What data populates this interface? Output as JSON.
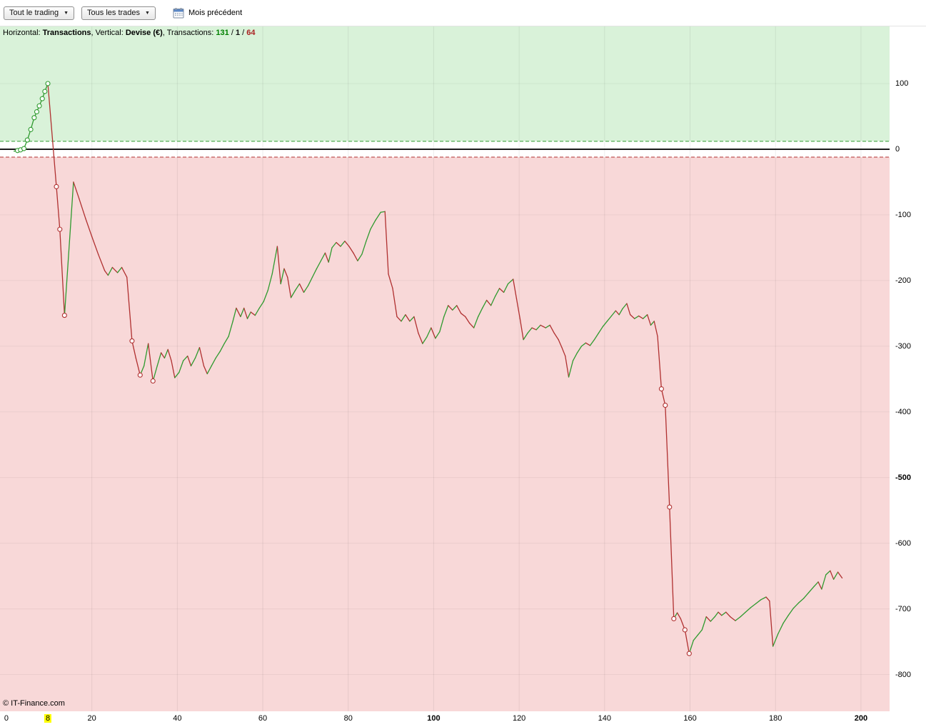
{
  "toolbar": {
    "trading_filter": "Tout le trading",
    "trades_filter": "Tous les trades",
    "prev_month_label": "Mois précédent"
  },
  "legend": {
    "horizontal_label": "Horizontal: ",
    "horizontal_value": "Transactions",
    "comma1": ", ",
    "vertical_label": "Vertical: ",
    "vertical_value": "Devise (€)",
    "comma2": ", ",
    "transactions_label": "Transactions: ",
    "wins": "131",
    "slash1": " / ",
    "neutral": "1",
    "slash2": " / ",
    "losses": "64"
  },
  "footer": "© IT-Finance.com",
  "chart_data": {
    "type": "line",
    "title": "Equity curve (cumulative P&L per transaction)",
    "xlabel": "Transactions",
    "ylabel": "Devise (€)",
    "xlim": [
      -1.5,
      206.7
    ],
    "ylim": [
      -856,
      187
    ],
    "grid": true,
    "zero_band": 12,
    "transactions_summary": {
      "wins": 131,
      "neutral": 1,
      "losses": 64
    },
    "colors": {
      "up": "#2e9a2e",
      "down": "#b03030",
      "bg_up": "#d9f2d9",
      "bg_down": "#f8d8d8",
      "zero_line": "#1a1a1a",
      "marker_fill": "#ffffff",
      "highlight": "#ffff00"
    },
    "y_ticks": [
      {
        "label": "100",
        "y": 100,
        "bold": false,
        "grid": true
      },
      {
        "label": "0",
        "y": 0,
        "bold": false,
        "grid": false
      },
      {
        "label": "-100",
        "y": -100,
        "bold": false,
        "grid": true
      },
      {
        "label": "-200",
        "y": -200,
        "bold": false,
        "grid": true
      },
      {
        "label": "-300",
        "y": -300,
        "bold": false,
        "grid": true
      },
      {
        "label": "-400",
        "y": -400,
        "bold": false,
        "grid": true
      },
      {
        "label": "-500",
        "y": -500,
        "bold": true,
        "grid": true
      },
      {
        "label": "-600",
        "y": -600,
        "bold": false,
        "grid": true
      },
      {
        "label": "-700",
        "y": -700,
        "bold": false,
        "grid": true
      },
      {
        "label": "-800",
        "y": -800,
        "bold": false,
        "grid": true
      }
    ],
    "x_ticks": [
      {
        "label": "0",
        "x": 0,
        "bold": false,
        "highlight": false,
        "grid": false
      },
      {
        "label": "8",
        "x": 9.7,
        "bold": false,
        "highlight": true,
        "grid": false
      },
      {
        "label": "20",
        "x": 20,
        "bold": false,
        "highlight": false,
        "grid": true
      },
      {
        "label": "40",
        "x": 40,
        "bold": false,
        "highlight": false,
        "grid": true
      },
      {
        "label": "60",
        "x": 60,
        "bold": false,
        "highlight": false,
        "grid": true
      },
      {
        "label": "80",
        "x": 80,
        "bold": false,
        "highlight": false,
        "grid": true
      },
      {
        "label": "100",
        "x": 100,
        "bold": true,
        "highlight": false,
        "grid": true
      },
      {
        "label": "120",
        "x": 120,
        "bold": false,
        "highlight": false,
        "grid": true
      },
      {
        "label": "140",
        "x": 140,
        "bold": false,
        "highlight": false,
        "grid": true
      },
      {
        "label": "160",
        "x": 160,
        "bold": false,
        "highlight": false,
        "grid": true
      },
      {
        "label": "180",
        "x": 180,
        "bold": false,
        "highlight": false,
        "grid": true
      },
      {
        "label": "200",
        "x": 200,
        "bold": true,
        "highlight": false,
        "grid": true
      }
    ],
    "points": [
      [
        1.8,
        -3,
        0
      ],
      [
        2.6,
        -2,
        1
      ],
      [
        3.3,
        -1,
        1
      ],
      [
        4.1,
        1,
        1
      ],
      [
        4.9,
        14,
        1
      ],
      [
        5.7,
        30,
        1
      ],
      [
        6.5,
        48,
        1
      ],
      [
        7.1,
        57,
        1
      ],
      [
        7.7,
        66,
        1
      ],
      [
        8.4,
        77,
        1
      ],
      [
        9.0,
        88,
        1
      ],
      [
        9.7,
        100,
        1
      ],
      [
        11.7,
        -57,
        1
      ],
      [
        12.5,
        -122,
        1
      ],
      [
        13.6,
        -253,
        1
      ],
      [
        15.7,
        -50,
        0
      ],
      [
        17.0,
        -75,
        0
      ],
      [
        18.5,
        -105,
        0
      ],
      [
        20.0,
        -133,
        0
      ],
      [
        21.5,
        -160,
        0
      ],
      [
        23.0,
        -185,
        0
      ],
      [
        23.8,
        -192,
        0
      ],
      [
        24.8,
        -180,
        0
      ],
      [
        26.0,
        -188,
        0
      ],
      [
        27.0,
        -180,
        0
      ],
      [
        28.2,
        -195,
        0
      ],
      [
        29.4,
        -292,
        1
      ],
      [
        30.3,
        -318,
        0
      ],
      [
        31.3,
        -344,
        1
      ],
      [
        32.2,
        -330,
        0
      ],
      [
        33.2,
        -296,
        0
      ],
      [
        34.3,
        -353,
        1
      ],
      [
        35.3,
        -330,
        0
      ],
      [
        36.2,
        -310,
        0
      ],
      [
        37.0,
        -318,
        0
      ],
      [
        37.8,
        -305,
        0
      ],
      [
        38.6,
        -322,
        0
      ],
      [
        39.4,
        -348,
        0
      ],
      [
        40.4,
        -340,
        0
      ],
      [
        41.4,
        -322,
        0
      ],
      [
        42.4,
        -315,
        0
      ],
      [
        43.2,
        -330,
        0
      ],
      [
        44.2,
        -318,
        0
      ],
      [
        45.2,
        -302,
        0
      ],
      [
        46.2,
        -330,
        0
      ],
      [
        47.0,
        -342,
        0
      ],
      [
        48.0,
        -330,
        0
      ],
      [
        49.0,
        -318,
        0
      ],
      [
        50.0,
        -308,
        0
      ],
      [
        51.0,
        -296,
        0
      ],
      [
        52.0,
        -285,
        0
      ],
      [
        53.0,
        -262,
        0
      ],
      [
        53.8,
        -242,
        0
      ],
      [
        54.8,
        -255,
        0
      ],
      [
        55.6,
        -242,
        0
      ],
      [
        56.4,
        -258,
        0
      ],
      [
        57.2,
        -248,
        0
      ],
      [
        58.2,
        -253,
        0
      ],
      [
        59.2,
        -242,
        0
      ],
      [
        60.2,
        -232,
        0
      ],
      [
        61.2,
        -215,
        0
      ],
      [
        62.2,
        -190,
        0
      ],
      [
        63.4,
        -148,
        0
      ],
      [
        64.2,
        -205,
        0
      ],
      [
        65.0,
        -182,
        0
      ],
      [
        65.8,
        -195,
        0
      ],
      [
        66.6,
        -226,
        0
      ],
      [
        67.6,
        -215,
        0
      ],
      [
        68.6,
        -205,
        0
      ],
      [
        69.6,
        -218,
        0
      ],
      [
        70.6,
        -208,
        0
      ],
      [
        71.6,
        -195,
        0
      ],
      [
        72.6,
        -182,
        0
      ],
      [
        73.6,
        -170,
        0
      ],
      [
        74.6,
        -158,
        0
      ],
      [
        75.4,
        -172,
        0
      ],
      [
        76.2,
        -150,
        0
      ],
      [
        77.2,
        -142,
        0
      ],
      [
        78.2,
        -148,
        0
      ],
      [
        79.2,
        -140,
        0
      ],
      [
        80.2,
        -148,
        0
      ],
      [
        81.2,
        -158,
        0
      ],
      [
        82.2,
        -170,
        0
      ],
      [
        83.2,
        -160,
        0
      ],
      [
        84.2,
        -140,
        0
      ],
      [
        85.2,
        -122,
        0
      ],
      [
        86.4,
        -108,
        0
      ],
      [
        87.6,
        -96,
        0
      ],
      [
        88.6,
        -95,
        0
      ],
      [
        89.4,
        -190,
        0
      ],
      [
        90.4,
        -212,
        0
      ],
      [
        91.4,
        -255,
        0
      ],
      [
        92.4,
        -262,
        0
      ],
      [
        93.4,
        -252,
        0
      ],
      [
        94.4,
        -262,
        0
      ],
      [
        95.4,
        -255,
        0
      ],
      [
        96.4,
        -280,
        0
      ],
      [
        97.4,
        -296,
        0
      ],
      [
        98.4,
        -286,
        0
      ],
      [
        99.4,
        -272,
        0
      ],
      [
        100.4,
        -288,
        0
      ],
      [
        101.4,
        -278,
        0
      ],
      [
        102.4,
        -255,
        0
      ],
      [
        103.4,
        -238,
        0
      ],
      [
        104.4,
        -245,
        0
      ],
      [
        105.4,
        -238,
        0
      ],
      [
        106.4,
        -250,
        0
      ],
      [
        107.4,
        -255,
        0
      ],
      [
        108.4,
        -265,
        0
      ],
      [
        109.4,
        -272,
        0
      ],
      [
        110.4,
        -255,
        0
      ],
      [
        111.4,
        -242,
        0
      ],
      [
        112.4,
        -230,
        0
      ],
      [
        113.4,
        -238,
        0
      ],
      [
        114.4,
        -224,
        0
      ],
      [
        115.4,
        -212,
        0
      ],
      [
        116.4,
        -218,
        0
      ],
      [
        117.4,
        -205,
        0
      ],
      [
        118.6,
        -198,
        0
      ],
      [
        119.4,
        -228,
        0
      ],
      [
        120.2,
        -258,
        0
      ],
      [
        121.0,
        -290,
        0
      ],
      [
        122.0,
        -280,
        0
      ],
      [
        123.0,
        -272,
        0
      ],
      [
        124.0,
        -275,
        0
      ],
      [
        125.0,
        -268,
        0
      ],
      [
        126.2,
        -272,
        0
      ],
      [
        127.2,
        -268,
        0
      ],
      [
        128.2,
        -280,
        0
      ],
      [
        129.2,
        -290,
        0
      ],
      [
        130.0,
        -302,
        0
      ],
      [
        130.8,
        -315,
        0
      ],
      [
        131.6,
        -347,
        0
      ],
      [
        132.6,
        -322,
        0
      ],
      [
        133.6,
        -310,
        0
      ],
      [
        134.6,
        -300,
        0
      ],
      [
        135.6,
        -295,
        0
      ],
      [
        136.6,
        -299,
        0
      ],
      [
        137.6,
        -290,
        0
      ],
      [
        138.6,
        -280,
        0
      ],
      [
        139.6,
        -270,
        0
      ],
      [
        140.6,
        -262,
        0
      ],
      [
        141.6,
        -254,
        0
      ],
      [
        142.6,
        -246,
        0
      ],
      [
        143.4,
        -252,
        0
      ],
      [
        144.2,
        -243,
        0
      ],
      [
        145.2,
        -235,
        0
      ],
      [
        146.0,
        -252,
        0
      ],
      [
        147.0,
        -258,
        0
      ],
      [
        148.0,
        -254,
        0
      ],
      [
        149.0,
        -258,
        0
      ],
      [
        150.0,
        -252,
        0
      ],
      [
        150.8,
        -268,
        0
      ],
      [
        151.6,
        -262,
        0
      ],
      [
        152.4,
        -285,
        0
      ],
      [
        153.3,
        -365,
        1
      ],
      [
        154.2,
        -390,
        1
      ],
      [
        155.2,
        -545,
        1
      ],
      [
        156.2,
        -715,
        1
      ],
      [
        157.0,
        -706,
        0
      ],
      [
        157.8,
        -715,
        0
      ],
      [
        158.8,
        -732,
        1
      ],
      [
        159.8,
        -768,
        1
      ],
      [
        160.8,
        -748,
        0
      ],
      [
        161.8,
        -740,
        0
      ],
      [
        162.8,
        -732,
        0
      ],
      [
        163.8,
        -712,
        0
      ],
      [
        164.8,
        -719,
        0
      ],
      [
        165.8,
        -712,
        0
      ],
      [
        166.6,
        -705,
        0
      ],
      [
        167.4,
        -710,
        0
      ],
      [
        168.4,
        -705,
        0
      ],
      [
        169.4,
        -712,
        0
      ],
      [
        170.6,
        -718,
        0
      ],
      [
        171.8,
        -712,
        0
      ],
      [
        173.0,
        -705,
        0
      ],
      [
        174.2,
        -698,
        0
      ],
      [
        175.4,
        -692,
        0
      ],
      [
        176.6,
        -686,
        0
      ],
      [
        177.8,
        -682,
        0
      ],
      [
        178.6,
        -688,
        0
      ],
      [
        179.4,
        -757,
        0
      ],
      [
        180.6,
        -738,
        0
      ],
      [
        181.8,
        -722,
        0
      ],
      [
        183.0,
        -710,
        0
      ],
      [
        184.2,
        -699,
        0
      ],
      [
        185.4,
        -691,
        0
      ],
      [
        186.6,
        -684,
        0
      ],
      [
        187.8,
        -675,
        0
      ],
      [
        189.0,
        -666,
        0
      ],
      [
        190.0,
        -659,
        0
      ],
      [
        190.8,
        -670,
        0
      ],
      [
        191.8,
        -648,
        0
      ],
      [
        192.8,
        -642,
        0
      ],
      [
        193.6,
        -655,
        0
      ],
      [
        194.6,
        -644,
        0
      ],
      [
        195.6,
        -653,
        0
      ]
    ]
  }
}
